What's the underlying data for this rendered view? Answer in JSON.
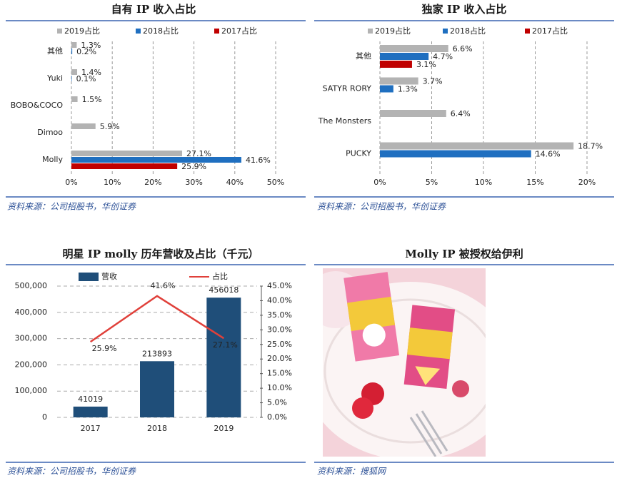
{
  "chart_data": [
    {
      "type": "bar",
      "orientation": "horizontal",
      "title": "自有 IP 收入占比",
      "source": "资料来源：公司招股书，华创证券",
      "categories": [
        "其他",
        "Yuki",
        "BOBO&COCO",
        "Dimoo",
        "Molly"
      ],
      "series": [
        {
          "name": "2019占比",
          "color": "#b3b3b3",
          "values": [
            1.3,
            1.4,
            1.5,
            5.9,
            27.1
          ],
          "value_labels": [
            "1.3%",
            "1.4%",
            "1.5%",
            "5.9%",
            "27.1%"
          ]
        },
        {
          "name": "2018占比",
          "color": "#1f6fc0",
          "values": [
            0.2,
            0.1,
            null,
            null,
            41.6
          ],
          "value_labels": [
            "0.2%",
            "0.1%",
            null,
            null,
            "41.6%"
          ]
        },
        {
          "name": "2017占比",
          "color": "#c00000",
          "values": [
            null,
            null,
            null,
            null,
            25.9
          ],
          "value_labels": [
            null,
            null,
            null,
            null,
            "25.9%"
          ]
        }
      ],
      "xlim": [
        0,
        50
      ],
      "xticks": [
        {
          "value": 0,
          "label": "0%"
        },
        {
          "value": 10,
          "label": "10%"
        },
        {
          "value": 20,
          "label": "20%"
        },
        {
          "value": 30,
          "label": "30%"
        },
        {
          "value": 40,
          "label": "40%"
        },
        {
          "value": 50,
          "label": "50%"
        }
      ],
      "grid": true
    },
    {
      "type": "bar",
      "orientation": "horizontal",
      "title": "独家 IP 收入占比",
      "source": "资料来源：公司招股书，华创证券",
      "categories": [
        "其他",
        "SATYR RORY",
        "The Monsters",
        "PUCKY"
      ],
      "series": [
        {
          "name": "2019占比",
          "color": "#b3b3b3",
          "values": [
            6.6,
            3.7,
            6.4,
            18.7
          ],
          "value_labels": [
            "6.6%",
            "3.7%",
            "6.4%",
            "18.7%"
          ]
        },
        {
          "name": "2018占比",
          "color": "#1f6fc0",
          "values": [
            4.7,
            1.3,
            null,
            14.6
          ],
          "value_labels": [
            "4.7%",
            "1.3%",
            null,
            "14.6%"
          ]
        },
        {
          "name": "2017占比",
          "color": "#c00000",
          "values": [
            3.1,
            null,
            null,
            null
          ],
          "value_labels": [
            "3.1%",
            null,
            null,
            null
          ]
        }
      ],
      "xlim": [
        0,
        20
      ],
      "xticks": [
        {
          "value": 0,
          "label": "0%"
        },
        {
          "value": 5,
          "label": "5%"
        },
        {
          "value": 10,
          "label": "10%"
        },
        {
          "value": 15,
          "label": "15%"
        },
        {
          "value": 20,
          "label": "20%"
        }
      ],
      "grid": true
    },
    {
      "type": "bar",
      "title": "明星 IP molly  历年营收及占比（千元）",
      "source": "资料来源：公司招股书，华创证券",
      "categories": [
        "2017",
        "2018",
        "2019"
      ],
      "series": [
        {
          "name": "营收",
          "color": "#1f4e79",
          "values": [
            41019,
            213893,
            456018
          ]
        },
        {
          "name": "占比",
          "type": "line",
          "axis": "y2",
          "color": "#e0403a",
          "values": [
            25.9,
            41.6,
            27.1
          ],
          "value_labels": [
            "25.9%",
            "41.6%",
            "27.1%"
          ]
        }
      ],
      "ylim": [
        0,
        500000
      ],
      "yticks": [
        0,
        {
          "value": 100000,
          "label": "100,000"
        },
        {
          "value": 200000,
          "label": "200,000"
        },
        {
          "value": 300000,
          "label": "300,000"
        },
        {
          "value": 400000,
          "label": "400,000"
        },
        {
          "value": 500000,
          "label": "500,000"
        }
      ],
      "y2lim": [
        0,
        45
      ],
      "y2ticks": [
        {
          "value": 0,
          "label": "0.0%"
        },
        {
          "value": 5,
          "label": "5.0%"
        },
        {
          "value": 10,
          "label": "10.0%"
        },
        {
          "value": 15,
          "label": "15.0%"
        },
        {
          "value": 20,
          "label": "20.0%"
        },
        {
          "value": 25,
          "label": "25.0%"
        },
        {
          "value": 30,
          "label": "30.0%"
        },
        {
          "value": 35,
          "label": "35.0%"
        },
        {
          "value": 40,
          "label": "40.0%"
        },
        {
          "value": 45,
          "label": "45.0%"
        }
      ],
      "grid": true
    }
  ],
  "photo_panel": {
    "title": "Molly IP  被授权给伊利",
    "source": "资料来源：搜狐网"
  }
}
